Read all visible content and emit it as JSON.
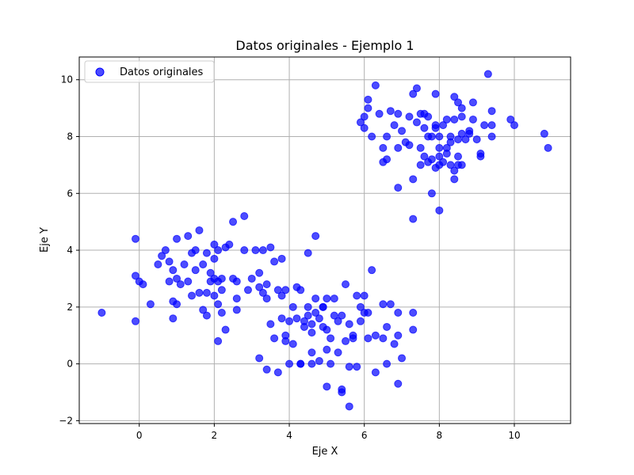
{
  "chart_data": {
    "type": "scatter",
    "title": "Datos originales - Ejemplo 1",
    "xlabel": "Eje X",
    "ylabel": "Eje Y",
    "xlim": [
      -1.6,
      11.5
    ],
    "ylim": [
      -2.1,
      10.8
    ],
    "xticks": [
      0,
      2,
      4,
      6,
      8,
      10
    ],
    "yticks": [
      -2,
      0,
      2,
      4,
      6,
      8,
      10
    ],
    "grid": true,
    "legend_position": "top-left",
    "series": [
      {
        "name": "Datos originales",
        "color": "#0000ff",
        "points": [
          [
            -1.0,
            1.8
          ],
          [
            -0.1,
            1.5
          ],
          [
            -0.1,
            4.4
          ],
          [
            -0.1,
            3.1
          ],
          [
            0.0,
            2.9
          ],
          [
            0.1,
            2.8
          ],
          [
            0.3,
            2.1
          ],
          [
            0.5,
            3.5
          ],
          [
            0.6,
            3.8
          ],
          [
            0.7,
            4.0
          ],
          [
            0.8,
            3.6
          ],
          [
            0.8,
            2.9
          ],
          [
            0.9,
            3.3
          ],
          [
            0.9,
            1.6
          ],
          [
            0.9,
            2.2
          ],
          [
            1.0,
            4.4
          ],
          [
            1.0,
            2.1
          ],
          [
            1.0,
            3.0
          ],
          [
            1.1,
            2.8
          ],
          [
            1.2,
            3.5
          ],
          [
            1.3,
            4.5
          ],
          [
            1.3,
            2.9
          ],
          [
            1.4,
            3.9
          ],
          [
            1.4,
            2.4
          ],
          [
            1.5,
            3.3
          ],
          [
            1.5,
            4.0
          ],
          [
            1.6,
            4.7
          ],
          [
            1.6,
            2.5
          ],
          [
            1.7,
            3.5
          ],
          [
            1.7,
            1.9
          ],
          [
            1.8,
            3.9
          ],
          [
            1.8,
            2.5
          ],
          [
            1.8,
            1.7
          ],
          [
            1.9,
            3.2
          ],
          [
            1.9,
            2.9
          ],
          [
            2.0,
            4.2
          ],
          [
            2.0,
            3.7
          ],
          [
            2.0,
            3.0
          ],
          [
            2.0,
            2.4
          ],
          [
            2.1,
            2.1
          ],
          [
            2.1,
            4.0
          ],
          [
            2.1,
            2.9
          ],
          [
            2.2,
            2.6
          ],
          [
            2.2,
            3.0
          ],
          [
            2.2,
            1.8
          ],
          [
            2.3,
            4.1
          ],
          [
            2.3,
            1.2
          ],
          [
            2.1,
            0.8
          ],
          [
            2.4,
            4.2
          ],
          [
            2.5,
            3.0
          ],
          [
            2.5,
            5.0
          ],
          [
            2.6,
            2.9
          ],
          [
            2.6,
            2.3
          ],
          [
            2.6,
            1.9
          ],
          [
            2.8,
            5.2
          ],
          [
            2.8,
            4.0
          ],
          [
            2.9,
            2.6
          ],
          [
            3.0,
            3.0
          ],
          [
            3.1,
            4.0
          ],
          [
            3.2,
            3.2
          ],
          [
            3.2,
            2.7
          ],
          [
            3.3,
            4.0
          ],
          [
            3.3,
            2.5
          ],
          [
            3.4,
            2.3
          ],
          [
            3.4,
            2.8
          ],
          [
            3.5,
            4.1
          ],
          [
            3.6,
            3.6
          ],
          [
            3.7,
            2.6
          ],
          [
            3.8,
            3.7
          ],
          [
            3.8,
            2.4
          ],
          [
            3.9,
            2.6
          ],
          [
            3.2,
            0.2
          ],
          [
            3.4,
            -0.2
          ],
          [
            3.5,
            1.4
          ],
          [
            3.6,
            0.9
          ],
          [
            3.7,
            -0.3
          ],
          [
            3.8,
            1.6
          ],
          [
            3.9,
            0.8
          ],
          [
            3.9,
            1.0
          ],
          [
            4.0,
            0.0
          ],
          [
            4.0,
            1.5
          ],
          [
            4.1,
            2.0
          ],
          [
            4.1,
            0.7
          ],
          [
            4.2,
            2.7
          ],
          [
            4.2,
            1.6
          ],
          [
            4.3,
            0.0
          ],
          [
            4.3,
            2.6
          ],
          [
            4.4,
            1.5
          ],
          [
            4.4,
            1.3
          ],
          [
            4.5,
            1.7
          ],
          [
            4.5,
            2.0
          ],
          [
            4.6,
            1.1
          ],
          [
            4.6,
            1.4
          ],
          [
            4.6,
            0.4
          ],
          [
            4.7,
            1.8
          ],
          [
            4.7,
            2.3
          ],
          [
            4.7,
            4.5
          ],
          [
            4.5,
            3.9
          ],
          [
            4.8,
            1.6
          ],
          [
            4.8,
            0.1
          ],
          [
            4.9,
            1.3
          ],
          [
            4.9,
            2.0
          ],
          [
            5.0,
            0.5
          ],
          [
            5.0,
            1.2
          ],
          [
            5.0,
            2.3
          ],
          [
            5.1,
            0.9
          ],
          [
            5.1,
            0.0
          ],
          [
            5.2,
            1.7
          ],
          [
            5.2,
            2.3
          ],
          [
            5.3,
            1.5
          ],
          [
            5.3,
            0.4
          ],
          [
            5.4,
            1.7
          ],
          [
            5.4,
            -0.9
          ],
          [
            5.4,
            -1.0
          ],
          [
            5.5,
            0.8
          ],
          [
            5.5,
            2.8
          ],
          [
            5.6,
            -0.1
          ],
          [
            5.6,
            1.4
          ],
          [
            5.6,
            -1.5
          ],
          [
            5.7,
            0.9
          ],
          [
            5.7,
            1.0
          ],
          [
            5.8,
            2.4
          ],
          [
            5.8,
            -0.1
          ],
          [
            5.9,
            2.0
          ],
          [
            5.9,
            1.5
          ],
          [
            6.0,
            1.8
          ],
          [
            6.0,
            2.4
          ],
          [
            6.1,
            0.9
          ],
          [
            6.1,
            1.8
          ],
          [
            6.2,
            3.3
          ],
          [
            6.3,
            -0.3
          ],
          [
            6.3,
            1.0
          ],
          [
            6.5,
            2.1
          ],
          [
            6.5,
            0.9
          ],
          [
            6.6,
            0.0
          ],
          [
            6.6,
            1.3
          ],
          [
            6.7,
            2.1
          ],
          [
            6.8,
            0.7
          ],
          [
            6.9,
            1.8
          ],
          [
            6.9,
            1.0
          ],
          [
            7.0,
            0.2
          ],
          [
            6.9,
            -0.7
          ],
          [
            7.3,
            1.2
          ],
          [
            7.3,
            1.8
          ],
          [
            5.0,
            -0.8
          ],
          [
            4.9,
            2.0
          ],
          [
            4.3,
            0.0
          ],
          [
            4.6,
            0.0
          ],
          [
            5.9,
            8.5
          ],
          [
            6.0,
            8.3
          ],
          [
            6.0,
            8.7
          ],
          [
            6.1,
            9.0
          ],
          [
            6.1,
            9.3
          ],
          [
            6.2,
            8.0
          ],
          [
            6.3,
            9.8
          ],
          [
            6.4,
            8.8
          ],
          [
            6.5,
            7.6
          ],
          [
            6.5,
            7.1
          ],
          [
            6.6,
            8.0
          ],
          [
            6.6,
            7.2
          ],
          [
            6.7,
            8.9
          ],
          [
            6.8,
            8.4
          ],
          [
            6.9,
            8.8
          ],
          [
            6.9,
            7.6
          ],
          [
            6.9,
            6.2
          ],
          [
            7.0,
            8.2
          ],
          [
            7.1,
            7.8
          ],
          [
            7.2,
            8.7
          ],
          [
            7.3,
            9.5
          ],
          [
            7.3,
            6.5
          ],
          [
            7.4,
            9.7
          ],
          [
            7.4,
            8.5
          ],
          [
            7.5,
            8.8
          ],
          [
            7.5,
            7.6
          ],
          [
            7.5,
            7.0
          ],
          [
            7.6,
            8.8
          ],
          [
            7.6,
            8.3
          ],
          [
            7.6,
            7.3
          ],
          [
            7.7,
            8.7
          ],
          [
            7.7,
            7.1
          ],
          [
            7.8,
            8.0
          ],
          [
            7.8,
            7.2
          ],
          [
            7.9,
            9.5
          ],
          [
            7.9,
            8.4
          ],
          [
            7.9,
            6.9
          ],
          [
            8.0,
            8.0
          ],
          [
            8.0,
            7.6
          ],
          [
            8.0,
            7.3
          ],
          [
            8.1,
            8.4
          ],
          [
            8.1,
            7.1
          ],
          [
            8.2,
            8.6
          ],
          [
            8.2,
            7.4
          ],
          [
            8.3,
            7.8
          ],
          [
            8.3,
            8.0
          ],
          [
            8.3,
            7.0
          ],
          [
            8.4,
            9.4
          ],
          [
            8.4,
            8.6
          ],
          [
            8.4,
            6.5
          ],
          [
            8.5,
            9.2
          ],
          [
            8.5,
            7.9
          ],
          [
            8.5,
            7.0
          ],
          [
            8.6,
            8.7
          ],
          [
            8.6,
            9.0
          ],
          [
            8.7,
            7.9
          ],
          [
            8.8,
            8.2
          ],
          [
            8.9,
            8.6
          ],
          [
            8.9,
            9.2
          ],
          [
            9.0,
            7.9
          ],
          [
            9.1,
            7.4
          ],
          [
            9.1,
            7.3
          ],
          [
            9.2,
            8.4
          ],
          [
            9.3,
            10.2
          ],
          [
            9.4,
            8.9
          ],
          [
            9.4,
            8.4
          ],
          [
            9.4,
            8.0
          ],
          [
            8.8,
            8.1
          ],
          [
            8.6,
            8.1
          ],
          [
            7.9,
            8.3
          ],
          [
            7.7,
            8.0
          ],
          [
            7.8,
            6.0
          ],
          [
            8.0,
            5.4
          ],
          [
            7.3,
            5.1
          ],
          [
            8.4,
            6.8
          ],
          [
            8.5,
            7.3
          ],
          [
            8.0,
            7.0
          ],
          [
            7.2,
            7.7
          ],
          [
            9.9,
            8.6
          ],
          [
            10.0,
            8.4
          ],
          [
            10.8,
            8.1
          ],
          [
            10.9,
            7.6
          ],
          [
            8.6,
            7.0
          ],
          [
            8.2,
            7.6
          ]
        ]
      }
    ]
  }
}
